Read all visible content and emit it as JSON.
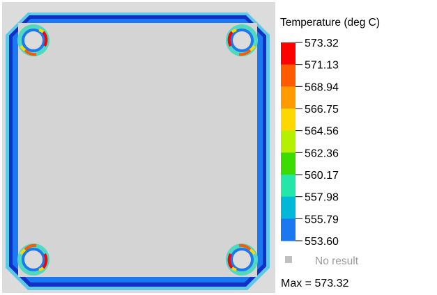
{
  "legend": {
    "title": "Temperature (deg C)",
    "ticks": [
      "573.32",
      "571.13",
      "568.94",
      "566.75",
      "564.56",
      "562.36",
      "560.17",
      "557.98",
      "555.79",
      "553.60"
    ],
    "colors": [
      "#ff0000",
      "#ff5a00",
      "#ff9a00",
      "#ffd800",
      "#b4f000",
      "#3cdc00",
      "#24e6a8",
      "#00b8d8",
      "#1c78f0",
      "#0000c8"
    ],
    "no_result_label": "No result",
    "no_result_color": "#c0c0c0",
    "max_label": "Max = 573.32"
  },
  "model": {
    "background_color": "#dcdcdc",
    "interior_color": "#d4d4d4"
  }
}
